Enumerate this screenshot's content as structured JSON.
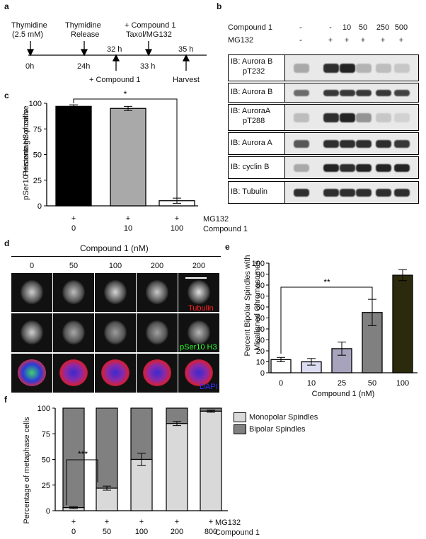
{
  "panel_labels": {
    "a": "a",
    "b": "b",
    "c": "c",
    "d": "d",
    "e": "e",
    "f": "f"
  },
  "panel_a": {
    "thymidine": "Thymidine",
    "thymidine_conc": "(2.5 mM)",
    "release_1": "Thymidine",
    "release_2": "Release",
    "compound_taxol_1": "+ Compound 1",
    "compound_taxol_2": "Taxol/MG132",
    "compound_below": "+ Compound 1",
    "harvest": "Harvest",
    "times": [
      "0h",
      "24h",
      "32 h",
      "33 h",
      "35 h"
    ]
  },
  "panel_b": {
    "compound_row_label": "Compound 1",
    "mg132_row_label": "MG132",
    "compound_values": [
      "-",
      "-",
      "10",
      "50",
      "250",
      "500"
    ],
    "mg132_values": [
      "-",
      "+",
      "+",
      "+",
      "+",
      "+"
    ],
    "blots": [
      {
        "label_1": "IB: Aurora B",
        "label_2": "pT232"
      },
      {
        "label_1": "IB: Aurora B",
        "label_2": ""
      },
      {
        "label_1": "IB: AuroraA",
        "label_2": "pT288"
      },
      {
        "label_1": "IB: Aurora A",
        "label_2": ""
      },
      {
        "label_1": "IB: cyclin B",
        "label_2": ""
      },
      {
        "label_1": "IB: Tubulin",
        "label_2": ""
      }
    ],
    "intensities": [
      [
        0.3,
        0.0,
        0.9,
        0.95,
        0.25,
        0.2,
        0.15
      ],
      [
        0.6,
        0.0,
        0.85,
        0.85,
        0.85,
        0.85,
        0.8
      ],
      [
        0.2,
        0.0,
        0.9,
        0.95,
        0.4,
        0.15,
        0.1
      ],
      [
        0.7,
        0.0,
        0.9,
        0.9,
        0.9,
        0.9,
        0.85
      ],
      [
        0.3,
        0.0,
        0.95,
        0.9,
        0.95,
        0.95,
        0.95
      ],
      [
        0.9,
        0.0,
        0.9,
        0.9,
        0.9,
        0.9,
        0.9
      ]
    ]
  },
  "panel_c": {
    "ylabel_1": "Percentage of cells",
    "ylabel_2": "pSer10 Histone H3 positive",
    "row1_label": "MG132",
    "row2_label": "Compound 1",
    "significance": "*",
    "mg132_values": [
      "+",
      "+",
      "+"
    ]
  },
  "panel_d": {
    "title": "Compound 1 (nM)",
    "concentrations": [
      "0",
      "50",
      "100",
      "200",
      "200"
    ],
    "channels": [
      "Tubulin",
      "pSer10 H3",
      "DAPI"
    ]
  },
  "panel_e": {
    "ylabel_1": "Percent Bipolar Spindles with",
    "ylabel_2": "Misaligned Chromosomes",
    "significance": "**"
  },
  "panel_f": {
    "ylabel": "Percentage of metaphase cells",
    "legend_monopolar": "Monopolar Spindles",
    "legend_bipolar": "Bipolar Spindles",
    "significance": "***",
    "row1_label": "MG132",
    "row2_label": "Compound 1",
    "mg132_values": [
      "+",
      "+",
      "+",
      "+",
      "+"
    ]
  },
  "chart_data": [
    {
      "type": "bar",
      "categories": [
        "0",
        "10",
        "100"
      ],
      "values": [
        97,
        95,
        5
      ],
      "errors": [
        1.5,
        2,
        2.5
      ],
      "colors": [
        "#000000",
        "#a9a9a9",
        "#ffffff"
      ],
      "title": "",
      "xlabel": "Compound 1",
      "ylabel": "Percentage of cells pSer10 Histone H3 positive",
      "ylim": [
        0,
        100
      ],
      "yticks": [
        0,
        25,
        50,
        75,
        100
      ]
    },
    {
      "type": "bar",
      "categories": [
        "0",
        "10",
        "25",
        "50",
        "100"
      ],
      "values": [
        12,
        10,
        22,
        55,
        89
      ],
      "errors": [
        2,
        3,
        6,
        12,
        5
      ],
      "colors": [
        "#ffffff",
        "#dcdcf0",
        "#a8a3bd",
        "#808080",
        "#2b2a0d"
      ],
      "title": "",
      "xlabel": "Compound 1 (nM)",
      "ylabel": "Percent Bipolar Spindles with Misaligned Chromosomes",
      "ylim": [
        0,
        100
      ],
      "yticks": [
        0,
        10,
        20,
        30,
        40,
        50,
        60,
        70,
        80,
        90,
        100
      ]
    },
    {
      "type": "bar",
      "stacked": true,
      "categories": [
        "0",
        "50",
        "100",
        "200",
        "800"
      ],
      "series": [
        {
          "name": "Monopolar Spindles",
          "values": [
            3,
            22,
            50,
            85,
            97
          ],
          "errors": [
            1,
            2,
            6,
            2,
            1
          ],
          "color": "#d9d9d9"
        },
        {
          "name": "Bipolar Spindles",
          "values": [
            97,
            78,
            50,
            15,
            3
          ],
          "color": "#808080"
        }
      ],
      "title": "",
      "xlabel": "Compound 1",
      "ylabel": "Percentage of metaphase cells",
      "ylim": [
        0,
        100
      ],
      "yticks": [
        0,
        25,
        50,
        75,
        100
      ],
      "legend": "top-right"
    }
  ]
}
